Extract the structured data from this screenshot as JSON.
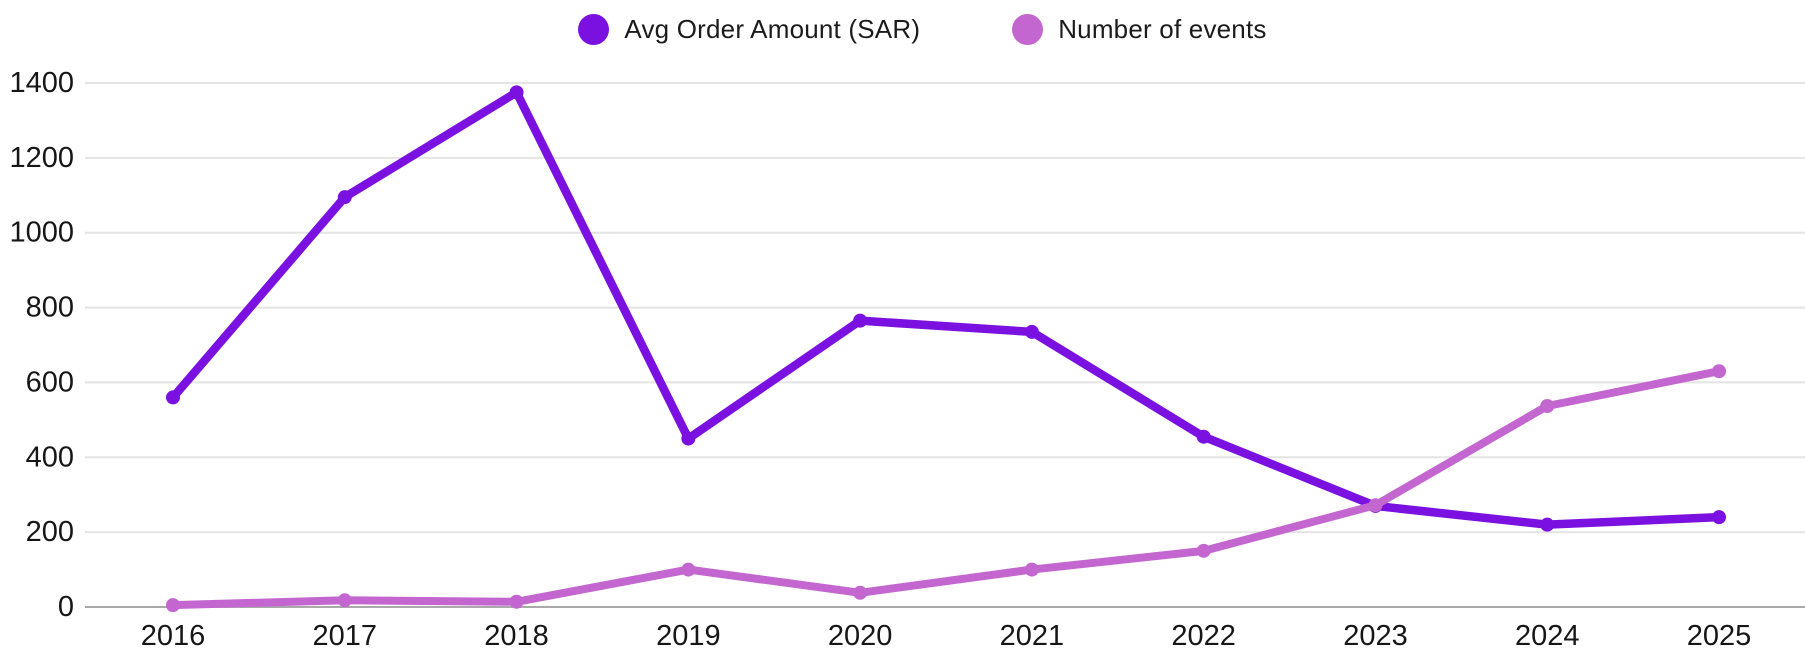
{
  "legend": {
    "items": [
      {
        "label": "Avg Order Amount (SAR)",
        "color": "#7b11e0"
      },
      {
        "label": "Number of events",
        "color": "#c466d0"
      }
    ]
  },
  "chart_data": {
    "type": "line",
    "title": "",
    "xlabel": "",
    "ylabel": "",
    "categories": [
      "2016",
      "2017",
      "2018",
      "2019",
      "2020",
      "2021",
      "2022",
      "2023",
      "2024",
      "2025"
    ],
    "series": [
      {
        "name": "Avg Order Amount (SAR)",
        "color": "#7b11e0",
        "values": [
          560,
          1095,
          1375,
          450,
          765,
          735,
          455,
          270,
          220,
          240
        ]
      },
      {
        "name": "Number of events",
        "color": "#c466d0",
        "values": [
          5,
          18,
          14,
          100,
          38,
          100,
          150,
          272,
          537,
          630
        ]
      }
    ],
    "ylim": [
      0,
      1400
    ],
    "yticks": [
      0,
      200,
      400,
      600,
      800,
      1000,
      1200,
      1400
    ],
    "ytick_labels": [
      "0",
      "200",
      "400",
      "600",
      "800",
      "1000",
      "1200",
      "1400"
    ],
    "grid": true,
    "legend_position": "top"
  },
  "style": {
    "grid_color": "#e4e4e4",
    "axis_zero_color": "#a9a9a9",
    "tick_text_color": "#161616",
    "background": "#ffffff"
  }
}
